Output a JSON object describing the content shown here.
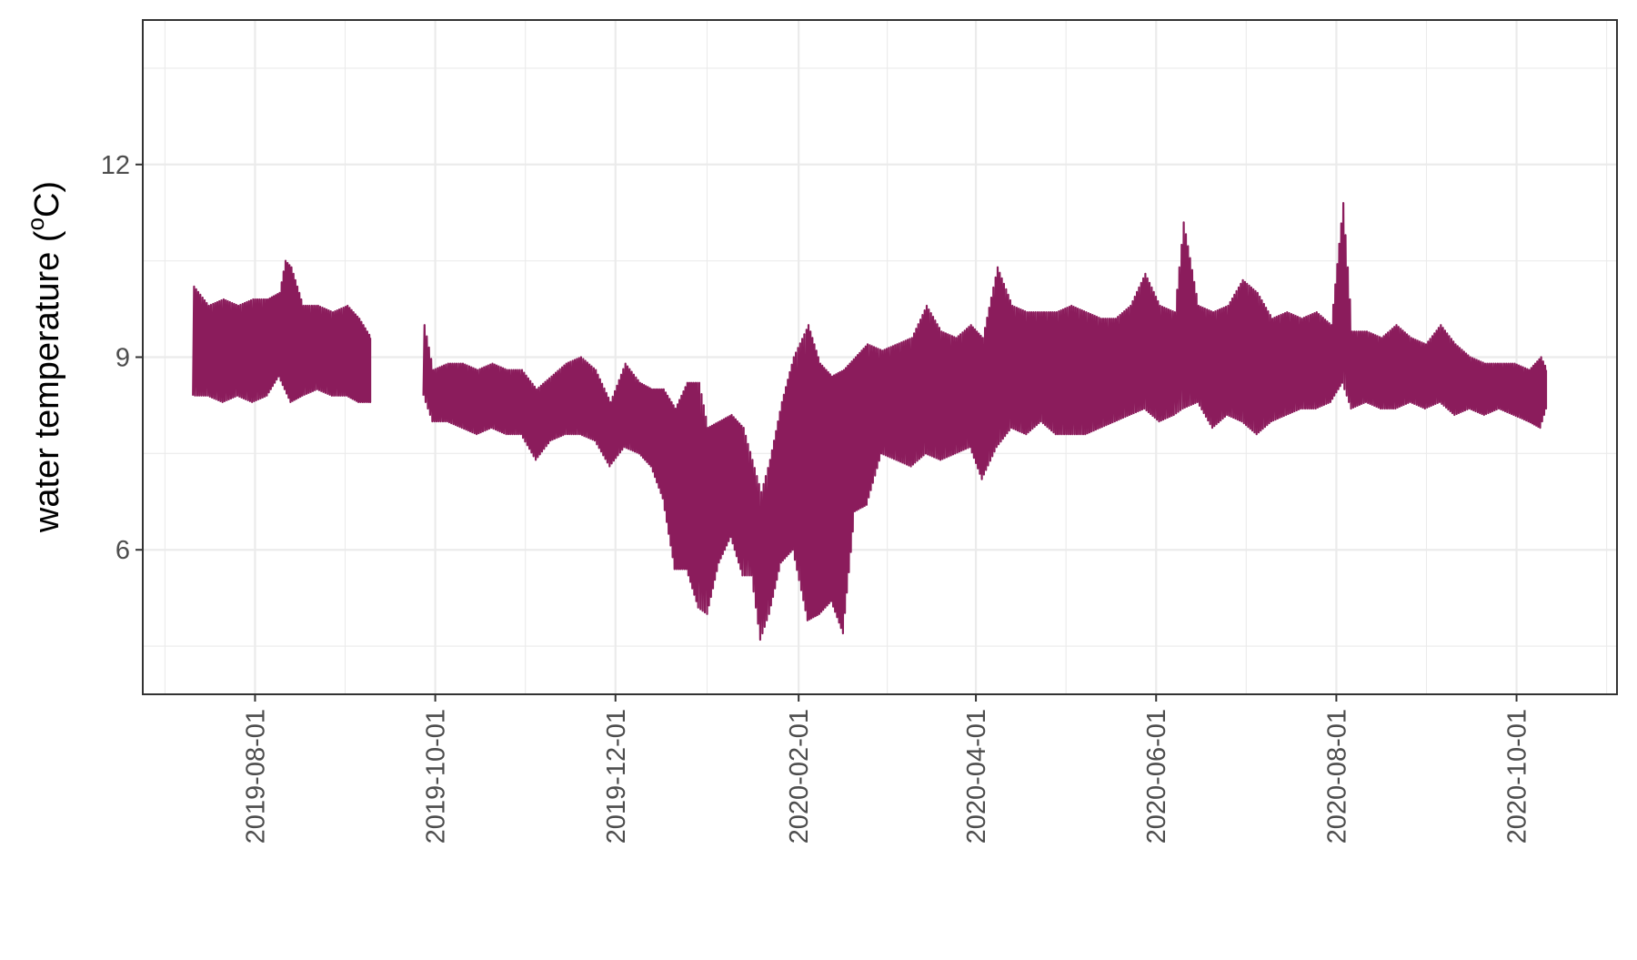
{
  "chart_data": {
    "type": "line",
    "title": "",
    "xlabel": "",
    "ylabel": "water temperature (°C)",
    "ylabel_parts": {
      "before": "water temperature (",
      "superscript": "o",
      "after": "C)"
    },
    "x_is_date": true,
    "xlim": [
      "2019-06-24",
      "2020-11-04"
    ],
    "ylim": [
      3.75,
      14.25
    ],
    "x_ticks": [
      "2019-08-01",
      "2019-10-01",
      "2019-12-01",
      "2020-02-01",
      "2020-04-01",
      "2020-06-01",
      "2020-08-01",
      "2020-10-01"
    ],
    "y_ticks": [
      6,
      9,
      12
    ],
    "y_minor_ticks": [
      4.5,
      7.5,
      10.5,
      13.5
    ],
    "grid": true,
    "legend": "none",
    "line_color": "#8B1C5C",
    "series": [
      {
        "points": [
          [
            "2019-07-11",
            8.4,
            10.1
          ],
          [
            "2019-07-16",
            8.4,
            9.8
          ],
          [
            "2019-07-21",
            8.3,
            9.9
          ],
          [
            "2019-07-26",
            8.4,
            9.8
          ],
          [
            "2019-07-31",
            8.3,
            9.9
          ],
          [
            "2019-08-05",
            8.4,
            9.9
          ],
          [
            "2019-08-09",
            8.7,
            10.0
          ],
          [
            "2019-08-11",
            8.5,
            10.5
          ],
          [
            "2019-08-13",
            8.3,
            10.4
          ],
          [
            "2019-08-17",
            8.4,
            9.8
          ],
          [
            "2019-08-22",
            8.5,
            9.8
          ],
          [
            "2019-08-27",
            8.4,
            9.7
          ],
          [
            "2019-09-01",
            8.4,
            9.8
          ],
          [
            "2019-09-05",
            8.3,
            9.6
          ],
          [
            "2019-09-09",
            8.3,
            9.3
          ],
          null,
          [
            "2019-09-27",
            8.4,
            9.5
          ],
          [
            "2019-09-30",
            8.0,
            8.8
          ],
          [
            "2019-10-05",
            8.0,
            8.9
          ],
          [
            "2019-10-10",
            7.9,
            8.9
          ],
          [
            "2019-10-15",
            7.8,
            8.8
          ],
          [
            "2019-10-20",
            7.9,
            8.9
          ],
          [
            "2019-10-25",
            7.8,
            8.8
          ],
          [
            "2019-10-30",
            7.8,
            8.8
          ],
          [
            "2019-11-04",
            7.4,
            8.5
          ],
          [
            "2019-11-09",
            7.7,
            8.7
          ],
          [
            "2019-11-14",
            7.8,
            8.9
          ],
          [
            "2019-11-19",
            7.8,
            9.0
          ],
          [
            "2019-11-24",
            7.7,
            8.8
          ],
          [
            "2019-11-29",
            7.3,
            8.3
          ],
          [
            "2019-12-04",
            7.6,
            8.9
          ],
          [
            "2019-12-09",
            7.5,
            8.6
          ],
          [
            "2019-12-13",
            7.3,
            8.5
          ],
          [
            "2019-12-17",
            6.8,
            8.5
          ],
          [
            "2019-12-21",
            5.7,
            8.2
          ],
          [
            "2019-12-25",
            5.7,
            8.6
          ],
          [
            "2019-12-29",
            5.1,
            8.6
          ],
          [
            "2020-01-01",
            5.0,
            7.9
          ],
          [
            "2020-01-05",
            5.8,
            8.0
          ],
          [
            "2020-01-09",
            6.2,
            8.1
          ],
          [
            "2020-01-13",
            5.6,
            7.9
          ],
          [
            "2020-01-16",
            5.6,
            7.4
          ],
          [
            "2020-01-19",
            4.6,
            6.9
          ],
          [
            "2020-01-22",
            5.0,
            7.4
          ],
          [
            "2020-01-26",
            5.8,
            8.3
          ],
          [
            "2020-01-30",
            6.0,
            9.0
          ],
          [
            "2020-02-04",
            4.9,
            9.5
          ],
          [
            "2020-02-08",
            5.0,
            8.9
          ],
          [
            "2020-02-12",
            5.2,
            8.7
          ],
          [
            "2020-02-16",
            4.7,
            8.8
          ],
          [
            "2020-02-20",
            6.6,
            9.0
          ],
          [
            "2020-02-24",
            6.7,
            9.2
          ],
          [
            "2020-02-29",
            7.5,
            9.1
          ],
          [
            "2020-03-05",
            7.4,
            9.2
          ],
          [
            "2020-03-10",
            7.3,
            9.3
          ],
          [
            "2020-03-15",
            7.5,
            9.8
          ],
          [
            "2020-03-20",
            7.4,
            9.4
          ],
          [
            "2020-03-25",
            7.5,
            9.3
          ],
          [
            "2020-03-30",
            7.6,
            9.5
          ],
          [
            "2020-04-03",
            7.1,
            9.3
          ],
          [
            "2020-04-08",
            7.6,
            10.4
          ],
          [
            "2020-04-13",
            7.9,
            9.8
          ],
          [
            "2020-04-18",
            7.8,
            9.7
          ],
          [
            "2020-04-23",
            8.0,
            9.7
          ],
          [
            "2020-04-28",
            7.8,
            9.7
          ],
          [
            "2020-05-03",
            7.8,
            9.8
          ],
          [
            "2020-05-08",
            7.8,
            9.7
          ],
          [
            "2020-05-13",
            7.9,
            9.6
          ],
          [
            "2020-05-18",
            8.0,
            9.6
          ],
          [
            "2020-05-23",
            8.1,
            9.8
          ],
          [
            "2020-05-28",
            8.2,
            10.3
          ],
          [
            "2020-06-02",
            8.0,
            9.8
          ],
          [
            "2020-06-07",
            8.1,
            9.7
          ],
          [
            "2020-06-10",
            8.2,
            11.1
          ],
          [
            "2020-06-15",
            8.3,
            9.8
          ],
          [
            "2020-06-20",
            7.9,
            9.7
          ],
          [
            "2020-06-25",
            8.1,
            9.8
          ],
          [
            "2020-06-30",
            8.0,
            10.2
          ],
          [
            "2020-07-05",
            7.8,
            10.0
          ],
          [
            "2020-07-10",
            8.0,
            9.6
          ],
          [
            "2020-07-15",
            8.1,
            9.7
          ],
          [
            "2020-07-20",
            8.2,
            9.6
          ],
          [
            "2020-07-25",
            8.2,
            9.7
          ],
          [
            "2020-07-30",
            8.3,
            9.5
          ],
          [
            "2020-08-03",
            8.6,
            11.4
          ],
          [
            "2020-08-06",
            8.2,
            9.4
          ],
          [
            "2020-08-11",
            8.3,
            9.4
          ],
          [
            "2020-08-16",
            8.2,
            9.3
          ],
          [
            "2020-08-21",
            8.2,
            9.5
          ],
          [
            "2020-08-26",
            8.3,
            9.3
          ],
          [
            "2020-08-31",
            8.2,
            9.2
          ],
          [
            "2020-09-05",
            8.3,
            9.5
          ],
          [
            "2020-09-10",
            8.1,
            9.2
          ],
          [
            "2020-09-15",
            8.2,
            9.0
          ],
          [
            "2020-09-20",
            8.1,
            8.9
          ],
          [
            "2020-09-25",
            8.2,
            8.9
          ],
          [
            "2020-09-30",
            8.1,
            8.9
          ],
          [
            "2020-10-05",
            8.0,
            8.8
          ],
          [
            "2020-10-09",
            7.9,
            9.0
          ],
          [
            "2020-10-11",
            8.2,
            8.8
          ]
        ]
      }
    ]
  }
}
